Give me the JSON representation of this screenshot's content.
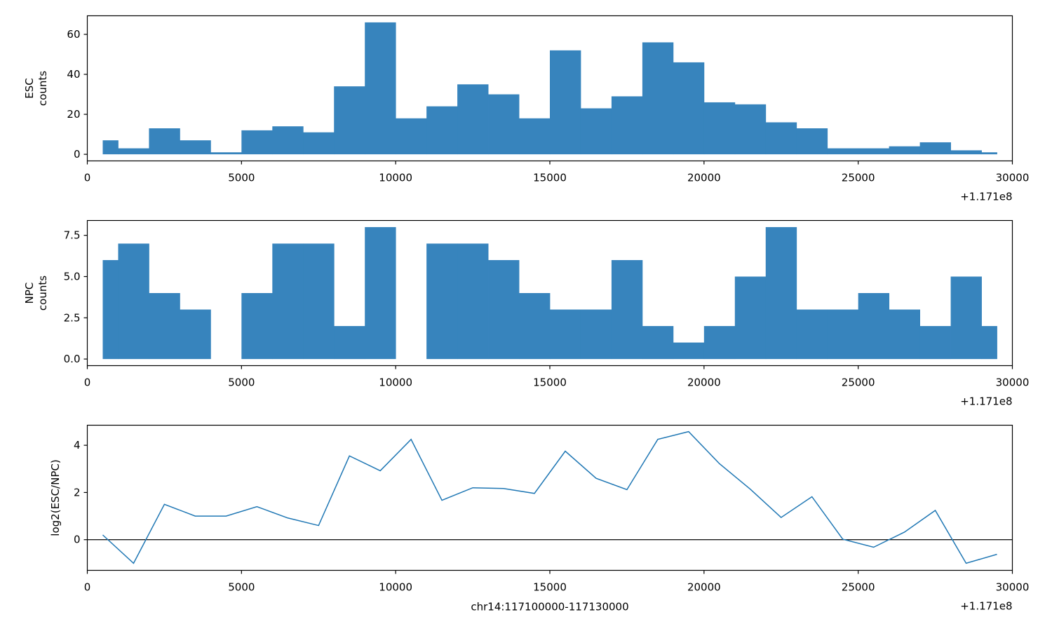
{
  "chart_data": [
    {
      "type": "bar",
      "ylabel": [
        "ESC",
        "counts"
      ],
      "xlim": [
        0,
        30000
      ],
      "ylim": [
        -3.3,
        69.3
      ],
      "x_offset_label": "+1.171e8",
      "xticks": [
        0,
        5000,
        10000,
        15000,
        20000,
        25000,
        30000
      ],
      "xtick_labels": [
        "0",
        "5000",
        "10000",
        "15000",
        "20000",
        "25000",
        "30000"
      ],
      "yticks": [
        0,
        20,
        40,
        60
      ],
      "ytick_labels": [
        "0",
        "20",
        "40",
        "60"
      ],
      "bin_edges": [
        500,
        1000,
        2000,
        3000,
        4000,
        5000,
        6000,
        7000,
        8000,
        9000,
        10000,
        11000,
        12000,
        13000,
        14000,
        15000,
        16000,
        17000,
        18000,
        19000,
        20000,
        21000,
        22000,
        23000,
        24000,
        25000,
        26000,
        27000,
        28000,
        29000,
        29500
      ],
      "values": [
        7,
        3,
        13,
        7,
        1,
        12,
        14,
        11,
        34,
        66,
        18,
        24,
        35,
        30,
        18,
        52,
        23,
        29,
        56,
        46,
        26,
        25,
        16,
        13,
        3,
        3,
        4,
        6,
        2,
        1
      ],
      "color": "#3784bd"
    },
    {
      "type": "bar",
      "ylabel": [
        "NPC",
        "counts"
      ],
      "xlim": [
        0,
        30000
      ],
      "ylim": [
        -0.4,
        8.4
      ],
      "x_offset_label": "+1.171e8",
      "xticks": [
        0,
        5000,
        10000,
        15000,
        20000,
        25000,
        30000
      ],
      "xtick_labels": [
        "0",
        "5000",
        "10000",
        "15000",
        "20000",
        "25000",
        "30000"
      ],
      "yticks": [
        0,
        2.5,
        5,
        7.5
      ],
      "ytick_labels": [
        "0.0",
        "2.5",
        "5.0",
        "7.5"
      ],
      "bin_edges": [
        500,
        1000,
        2000,
        3000,
        4000,
        5000,
        6000,
        7000,
        8000,
        9000,
        10000,
        11000,
        12000,
        13000,
        14000,
        15000,
        16000,
        17000,
        18000,
        19000,
        20000,
        21000,
        22000,
        23000,
        24000,
        25000,
        26000,
        27000,
        28000,
        29000,
        29500
      ],
      "values": [
        6,
        7,
        4,
        3,
        0,
        4,
        7,
        7,
        2,
        8,
        0,
        7,
        7,
        6,
        4,
        3,
        3,
        6,
        2,
        1,
        2,
        5,
        8,
        3,
        3,
        4,
        3,
        2,
        5,
        2
      ],
      "color": "#3784bd"
    },
    {
      "type": "line",
      "xlabel": "chr14:117100000-117130000",
      "ylabel": [
        "log2(ESC/NPC)"
      ],
      "xlim": [
        0,
        30000
      ],
      "ylim": [
        -1.3,
        4.85
      ],
      "x_offset_label": "+1.171e8",
      "xticks": [
        0,
        5000,
        10000,
        15000,
        20000,
        25000,
        30000
      ],
      "xtick_labels": [
        "0",
        "5000",
        "10000",
        "15000",
        "20000",
        "25000",
        "30000"
      ],
      "yticks": [
        0,
        2,
        4
      ],
      "ytick_labels": [
        "0",
        "2",
        "4"
      ],
      "hline": 0,
      "x": [
        500,
        1500,
        2500,
        3500,
        4500,
        5500,
        6500,
        7500,
        8500,
        9500,
        10500,
        11500,
        12500,
        13500,
        14500,
        15500,
        16500,
        17500,
        18500,
        19500,
        20500,
        21500,
        22500,
        23500,
        24500,
        25500,
        26500,
        27500,
        28500,
        29500
      ],
      "y": [
        0.2,
        -1.0,
        1.5,
        1.0,
        1.0,
        1.4,
        0.92,
        0.6,
        3.55,
        2.92,
        4.25,
        1.67,
        2.2,
        2.17,
        1.96,
        3.75,
        2.6,
        2.12,
        4.25,
        4.58,
        3.22,
        2.14,
        0.94,
        1.82,
        0.02,
        -0.32,
        0.32,
        1.24,
        -1.0,
        -0.62
      ],
      "color": "#1f77b4"
    }
  ]
}
